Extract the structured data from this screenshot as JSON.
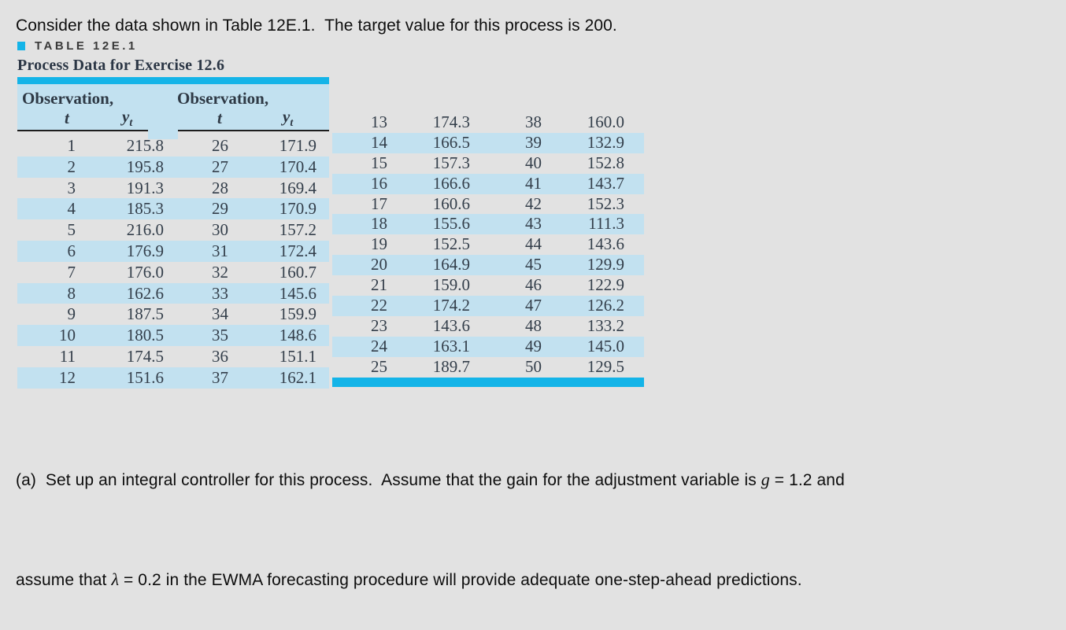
{
  "page": {
    "intro_text": "Consider the data shown in Table 12E.1.  The target value for this process is 200.",
    "question": {
      "line1_pre": "(a)  Set up an integral controller for this process.  Assume that the gain for the adjustment variable is ",
      "g_symbol": "g",
      "line1_post": " = 1.2 and",
      "line2_pre": "assume that ",
      "lambda_symbol": "λ",
      "line2_post": " = 0.2 in the EWMA forecasting procedure will provide adequate one-step-ahead predictions."
    }
  },
  "table": {
    "label": "TABLE 12E.1",
    "subtitle": "Process Data for Exercise 12.6",
    "column_headers": {
      "observation": "Observation,",
      "t": "t",
      "y": "y",
      "y_sub": "t"
    }
  },
  "colors": {
    "accent_cyan": "#14b4e8",
    "row_blue": "#c2e1f0",
    "page_bg": "#e2e2e2"
  },
  "chart_data": {
    "type": "table",
    "title": "Process Data for Exercise 12.6",
    "columns": [
      "t",
      "y_t"
    ],
    "rows": [
      [
        1,
        215.8
      ],
      [
        2,
        195.8
      ],
      [
        3,
        191.3
      ],
      [
        4,
        185.3
      ],
      [
        5,
        216.0
      ],
      [
        6,
        176.9
      ],
      [
        7,
        176.0
      ],
      [
        8,
        162.6
      ],
      [
        9,
        187.5
      ],
      [
        10,
        180.5
      ],
      [
        11,
        174.5
      ],
      [
        12,
        151.6
      ],
      [
        13,
        174.3
      ],
      [
        14,
        166.5
      ],
      [
        15,
        157.3
      ],
      [
        16,
        166.6
      ],
      [
        17,
        160.6
      ],
      [
        18,
        155.6
      ],
      [
        19,
        152.5
      ],
      [
        20,
        164.9
      ],
      [
        21,
        159.0
      ],
      [
        22,
        174.2
      ],
      [
        23,
        143.6
      ],
      [
        24,
        163.1
      ],
      [
        25,
        189.7
      ],
      [
        26,
        171.9
      ],
      [
        27,
        170.4
      ],
      [
        28,
        169.4
      ],
      [
        29,
        170.9
      ],
      [
        30,
        157.2
      ],
      [
        31,
        172.4
      ],
      [
        32,
        160.7
      ],
      [
        33,
        145.6
      ],
      [
        34,
        159.9
      ],
      [
        35,
        148.6
      ],
      [
        36,
        151.1
      ],
      [
        37,
        162.1
      ],
      [
        38,
        160.0
      ],
      [
        39,
        132.9
      ],
      [
        40,
        152.8
      ],
      [
        41,
        143.7
      ],
      [
        42,
        152.3
      ],
      [
        43,
        111.3
      ],
      [
        44,
        143.6
      ],
      [
        45,
        129.9
      ],
      [
        46,
        122.9
      ],
      [
        47,
        126.2
      ],
      [
        48,
        133.2
      ],
      [
        49,
        145.0
      ],
      [
        50,
        129.5
      ]
    ]
  }
}
